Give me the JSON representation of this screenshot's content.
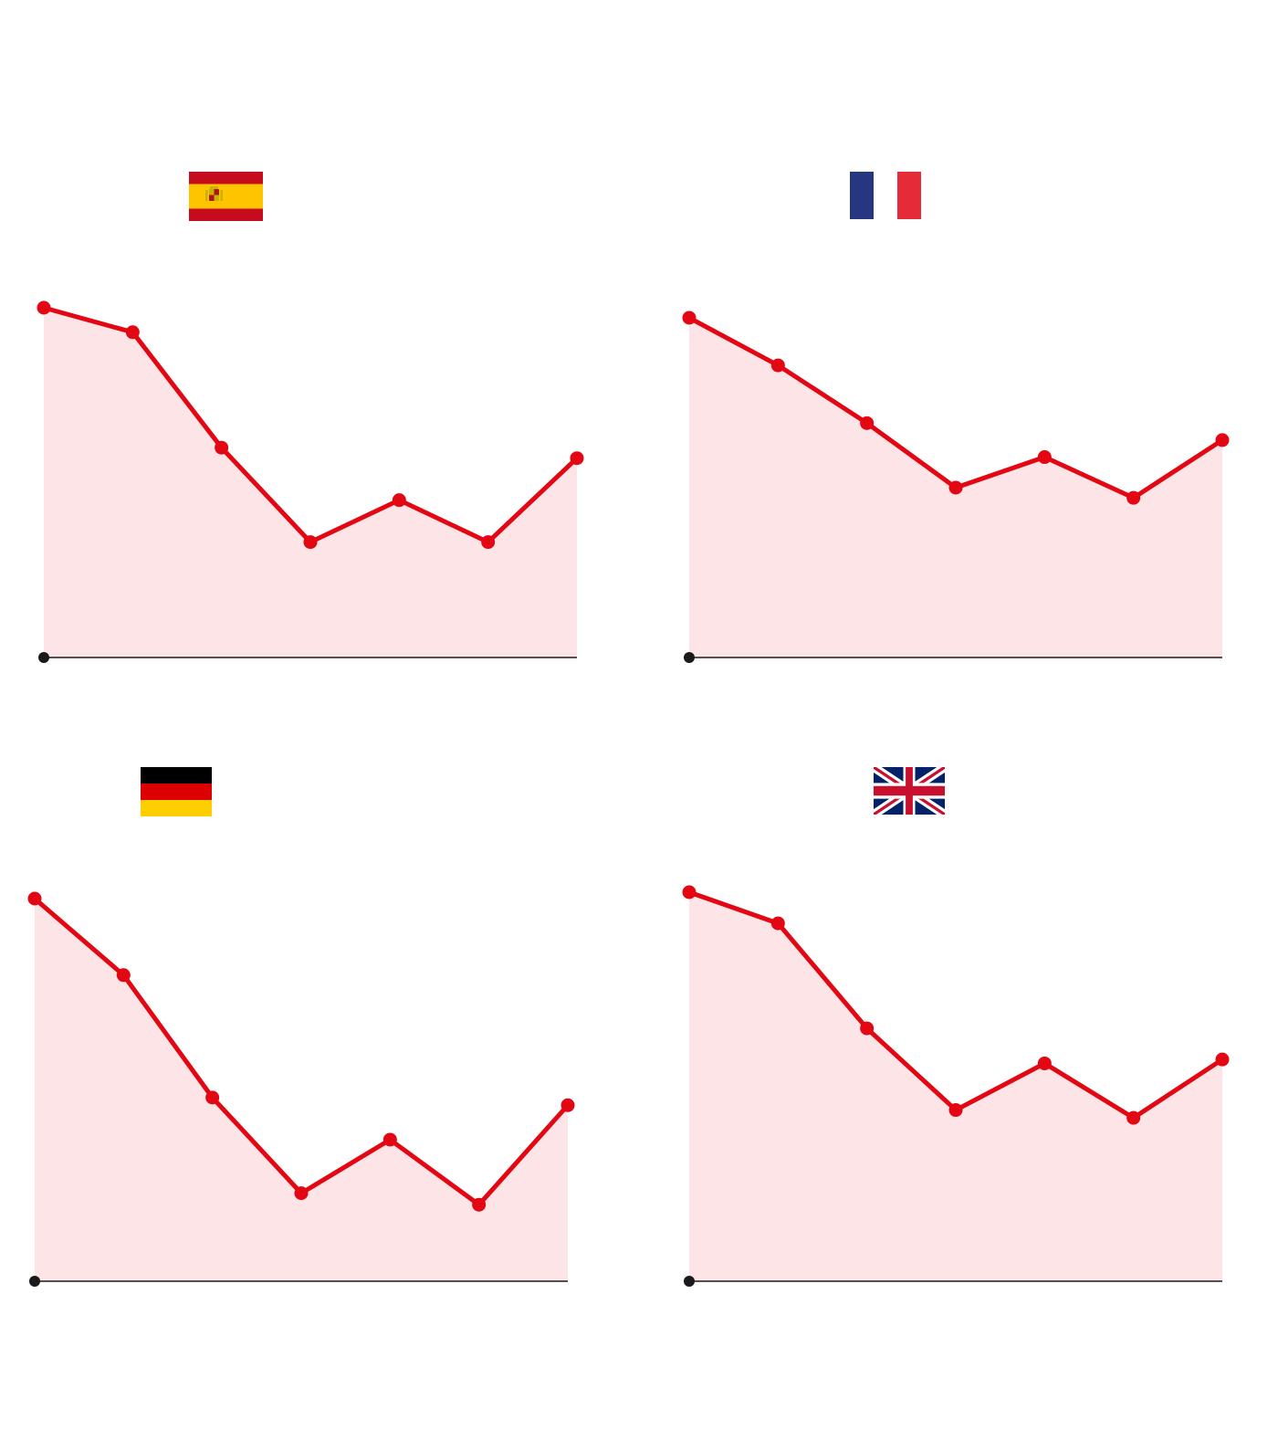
{
  "colors": {
    "line": "#e30613",
    "area": "#fce4e7",
    "axis": "#1a1a1a",
    "background": "#ffffff"
  },
  "chart_data": [
    {
      "type": "area",
      "flag": "spain-flag",
      "title": "",
      "xlabel": "",
      "ylabel": "",
      "x": [
        1,
        2,
        3,
        4,
        5,
        6,
        7
      ],
      "series": [
        {
          "values": [
            100,
            93,
            60,
            33,
            45,
            33,
            57
          ]
        }
      ],
      "ylim": [
        0,
        100
      ],
      "grid": false,
      "legend": "none"
    },
    {
      "type": "area",
      "flag": "france-flag",
      "title": "",
      "xlabel": "",
      "ylabel": "",
      "x": [
        1,
        2,
        3,
        4,
        5,
        6,
        7
      ],
      "series": [
        {
          "values": [
            100,
            86,
            69,
            50,
            59,
            47,
            64
          ]
        }
      ],
      "ylim": [
        0,
        100
      ],
      "grid": false,
      "legend": "none"
    },
    {
      "type": "area",
      "flag": "germany-flag",
      "title": "",
      "xlabel": "",
      "ylabel": "",
      "x": [
        1,
        2,
        3,
        4,
        5,
        6,
        7
      ],
      "series": [
        {
          "values": [
            100,
            80,
            48,
            23,
            37,
            20,
            46
          ]
        }
      ],
      "ylim": [
        0,
        100
      ],
      "grid": false,
      "legend": "none"
    },
    {
      "type": "area",
      "flag": "uk-flag",
      "title": "",
      "xlabel": "",
      "ylabel": "",
      "x": [
        1,
        2,
        3,
        4,
        5,
        6,
        7
      ],
      "series": [
        {
          "values": [
            100,
            92,
            65,
            44,
            56,
            42,
            57
          ]
        }
      ],
      "ylim": [
        0,
        100
      ],
      "grid": false,
      "legend": "none"
    }
  ]
}
